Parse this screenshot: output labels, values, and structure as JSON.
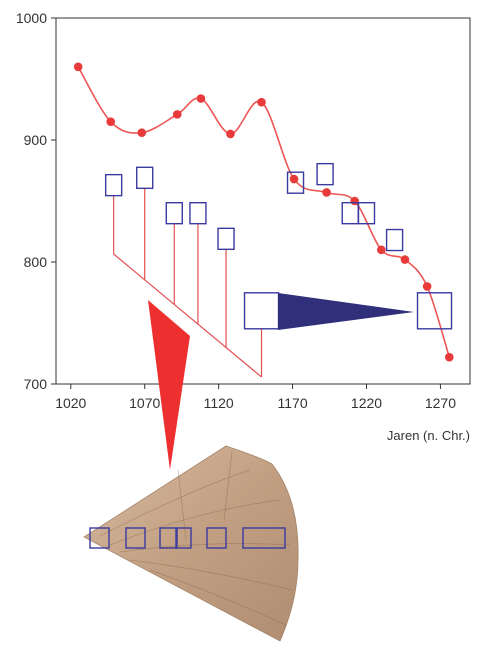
{
  "chart_data": {
    "type": "line",
    "title": "",
    "xlabel": "Jaren (n. Chr.)",
    "ylabel": "",
    "xlim": [
      1010,
      1290
    ],
    "ylim": [
      700,
      1000
    ],
    "x_ticks": [
      1020,
      1070,
      1120,
      1170,
      1220,
      1270
    ],
    "y_ticks": [
      700,
      800,
      900,
      1000
    ],
    "grid": false,
    "legend": "none",
    "series": [
      {
        "x": [
          1025,
          1047,
          1068,
          1092,
          1108,
          1128,
          1149,
          1171,
          1193,
          1212,
          1230,
          1246,
          1261,
          1276
        ],
        "y": [
          960,
          915,
          906,
          921,
          934,
          905,
          931,
          868,
          857,
          850,
          810,
          802,
          780,
          722
        ]
      }
    ],
    "sample_windows": [
      {
        "x": 1049,
        "y": 863
      },
      {
        "x": 1070,
        "y": 869
      },
      {
        "x": 1090,
        "y": 840
      },
      {
        "x": 1106,
        "y": 840
      },
      {
        "x": 1125,
        "y": 819
      },
      {
        "x": 1172,
        "y": 865
      },
      {
        "x": 1192,
        "y": 872
      },
      {
        "x": 1209,
        "y": 840
      },
      {
        "x": 1220,
        "y": 840
      },
      {
        "x": 1239,
        "y": 818
      },
      {
        "x": 1149,
        "y": 760
      },
      {
        "x": 1266,
        "y": 760
      }
    ],
    "colors": {
      "line": "#ee5555",
      "marker": "#e83a3a",
      "window": "#3a3aa0",
      "connector": "#e35050",
      "red_wedge": "#ee2f2f",
      "blue_wedge": "#2f2f7a",
      "axis": "#333333",
      "wood": "#c9a88a"
    }
  }
}
